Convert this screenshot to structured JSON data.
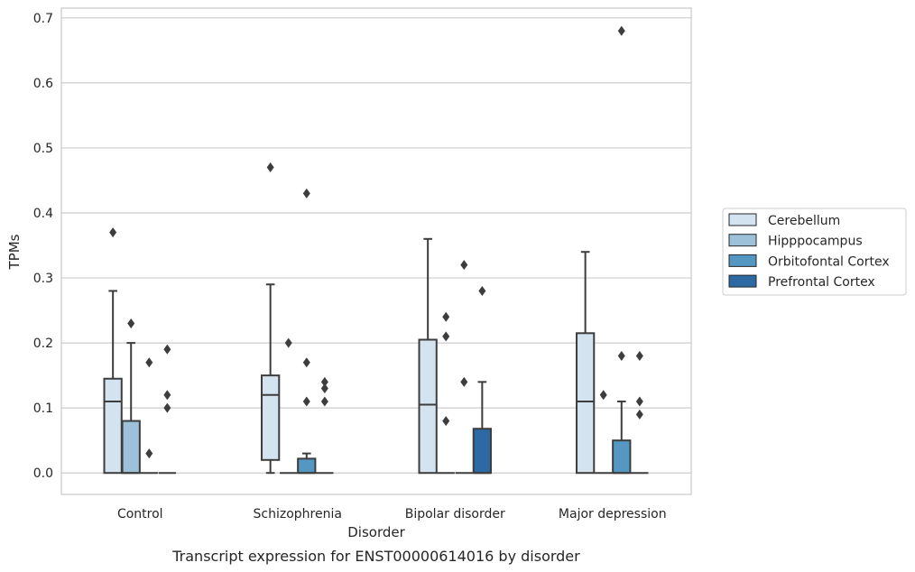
{
  "chart_data": {
    "type": "box",
    "title": "",
    "caption": "Transcript expression for ENST00000614016 by disorder",
    "xlabel": "Disorder",
    "ylabel": "TPMs",
    "ylim": [
      -0.033,
      0.715
    ],
    "yticks": [
      "0.0",
      "0.1",
      "0.2",
      "0.3",
      "0.4",
      "0.5",
      "0.6",
      "0.7"
    ],
    "grid": "horizontal",
    "legend_position": "right",
    "categories": [
      "Control",
      "Schizophrenia",
      "Bipolar disorder",
      "Major depression"
    ],
    "series": [
      {
        "name": "Cerebellum",
        "color": "#d4e3f0",
        "boxes": [
          {
            "q1": 0,
            "median": 0.11,
            "q3": 0.145,
            "whisker_low": 0,
            "whisker_high": 0.28,
            "outliers": [
              0.37
            ]
          },
          {
            "q1": 0.02,
            "median": 0.12,
            "q3": 0.15,
            "whisker_low": 0,
            "whisker_high": 0.29,
            "outliers": [
              0.47
            ]
          },
          {
            "q1": 0,
            "median": 0.105,
            "q3": 0.205,
            "whisker_low": 0,
            "whisker_high": 0.36,
            "outliers": []
          },
          {
            "q1": 0,
            "median": 0.11,
            "q3": 0.215,
            "whisker_low": 0,
            "whisker_high": 0.34,
            "outliers": []
          }
        ]
      },
      {
        "name": "Hipppocampus",
        "color": "#9cc1d9",
        "boxes": [
          {
            "q1": 0,
            "median": 0,
            "q3": 0.08,
            "whisker_low": 0,
            "whisker_high": 0.2,
            "outliers": [
              0.23
            ]
          },
          {
            "q1": 0,
            "median": 0,
            "q3": 0,
            "whisker_low": 0,
            "whisker_high": 0,
            "outliers": [
              0.2
            ]
          },
          {
            "q1": 0,
            "median": 0,
            "q3": 0,
            "whisker_low": 0,
            "whisker_high": 0,
            "outliers": [
              0.24,
              0.21,
              0.08
            ]
          },
          {
            "q1": 0,
            "median": 0,
            "q3": 0,
            "whisker_low": 0,
            "whisker_high": 0,
            "outliers": [
              0.12
            ]
          }
        ]
      },
      {
        "name": "Orbitofontal Cortex",
        "color": "#5497c3",
        "boxes": [
          {
            "q1": 0,
            "median": 0,
            "q3": 0,
            "whisker_low": 0,
            "whisker_high": 0,
            "outliers": [
              0.17,
              0.03
            ]
          },
          {
            "q1": 0,
            "median": 0,
            "q3": 0.022,
            "whisker_low": 0,
            "whisker_high": 0.03,
            "outliers": [
              0.43,
              0.17,
              0.11
            ]
          },
          {
            "q1": 0,
            "median": 0,
            "q3": 0,
            "whisker_low": 0,
            "whisker_high": 0,
            "outliers": [
              0.32,
              0.14
            ]
          },
          {
            "q1": 0,
            "median": 0,
            "q3": 0.05,
            "whisker_low": 0,
            "whisker_high": 0.11,
            "outliers": [
              0.68,
              0.18
            ]
          }
        ]
      },
      {
        "name": "Prefrontal Cortex",
        "color": "#2d69a2",
        "boxes": [
          {
            "q1": 0,
            "median": 0,
            "q3": 0,
            "whisker_low": 0,
            "whisker_high": 0,
            "outliers": [
              0.19,
              0.12,
              0.1
            ]
          },
          {
            "q1": 0,
            "median": 0,
            "q3": 0,
            "whisker_low": 0,
            "whisker_high": 0,
            "outliers": [
              0.14,
              0.13,
              0.11
            ]
          },
          {
            "q1": 0,
            "median": 0,
            "q3": 0.068,
            "whisker_low": 0,
            "whisker_high": 0.14,
            "outliers": [
              0.28
            ]
          },
          {
            "q1": 0,
            "median": 0,
            "q3": 0,
            "whisker_low": 0,
            "whisker_high": 0,
            "outliers": [
              0.18,
              0.11,
              0.09
            ]
          }
        ]
      }
    ]
  }
}
